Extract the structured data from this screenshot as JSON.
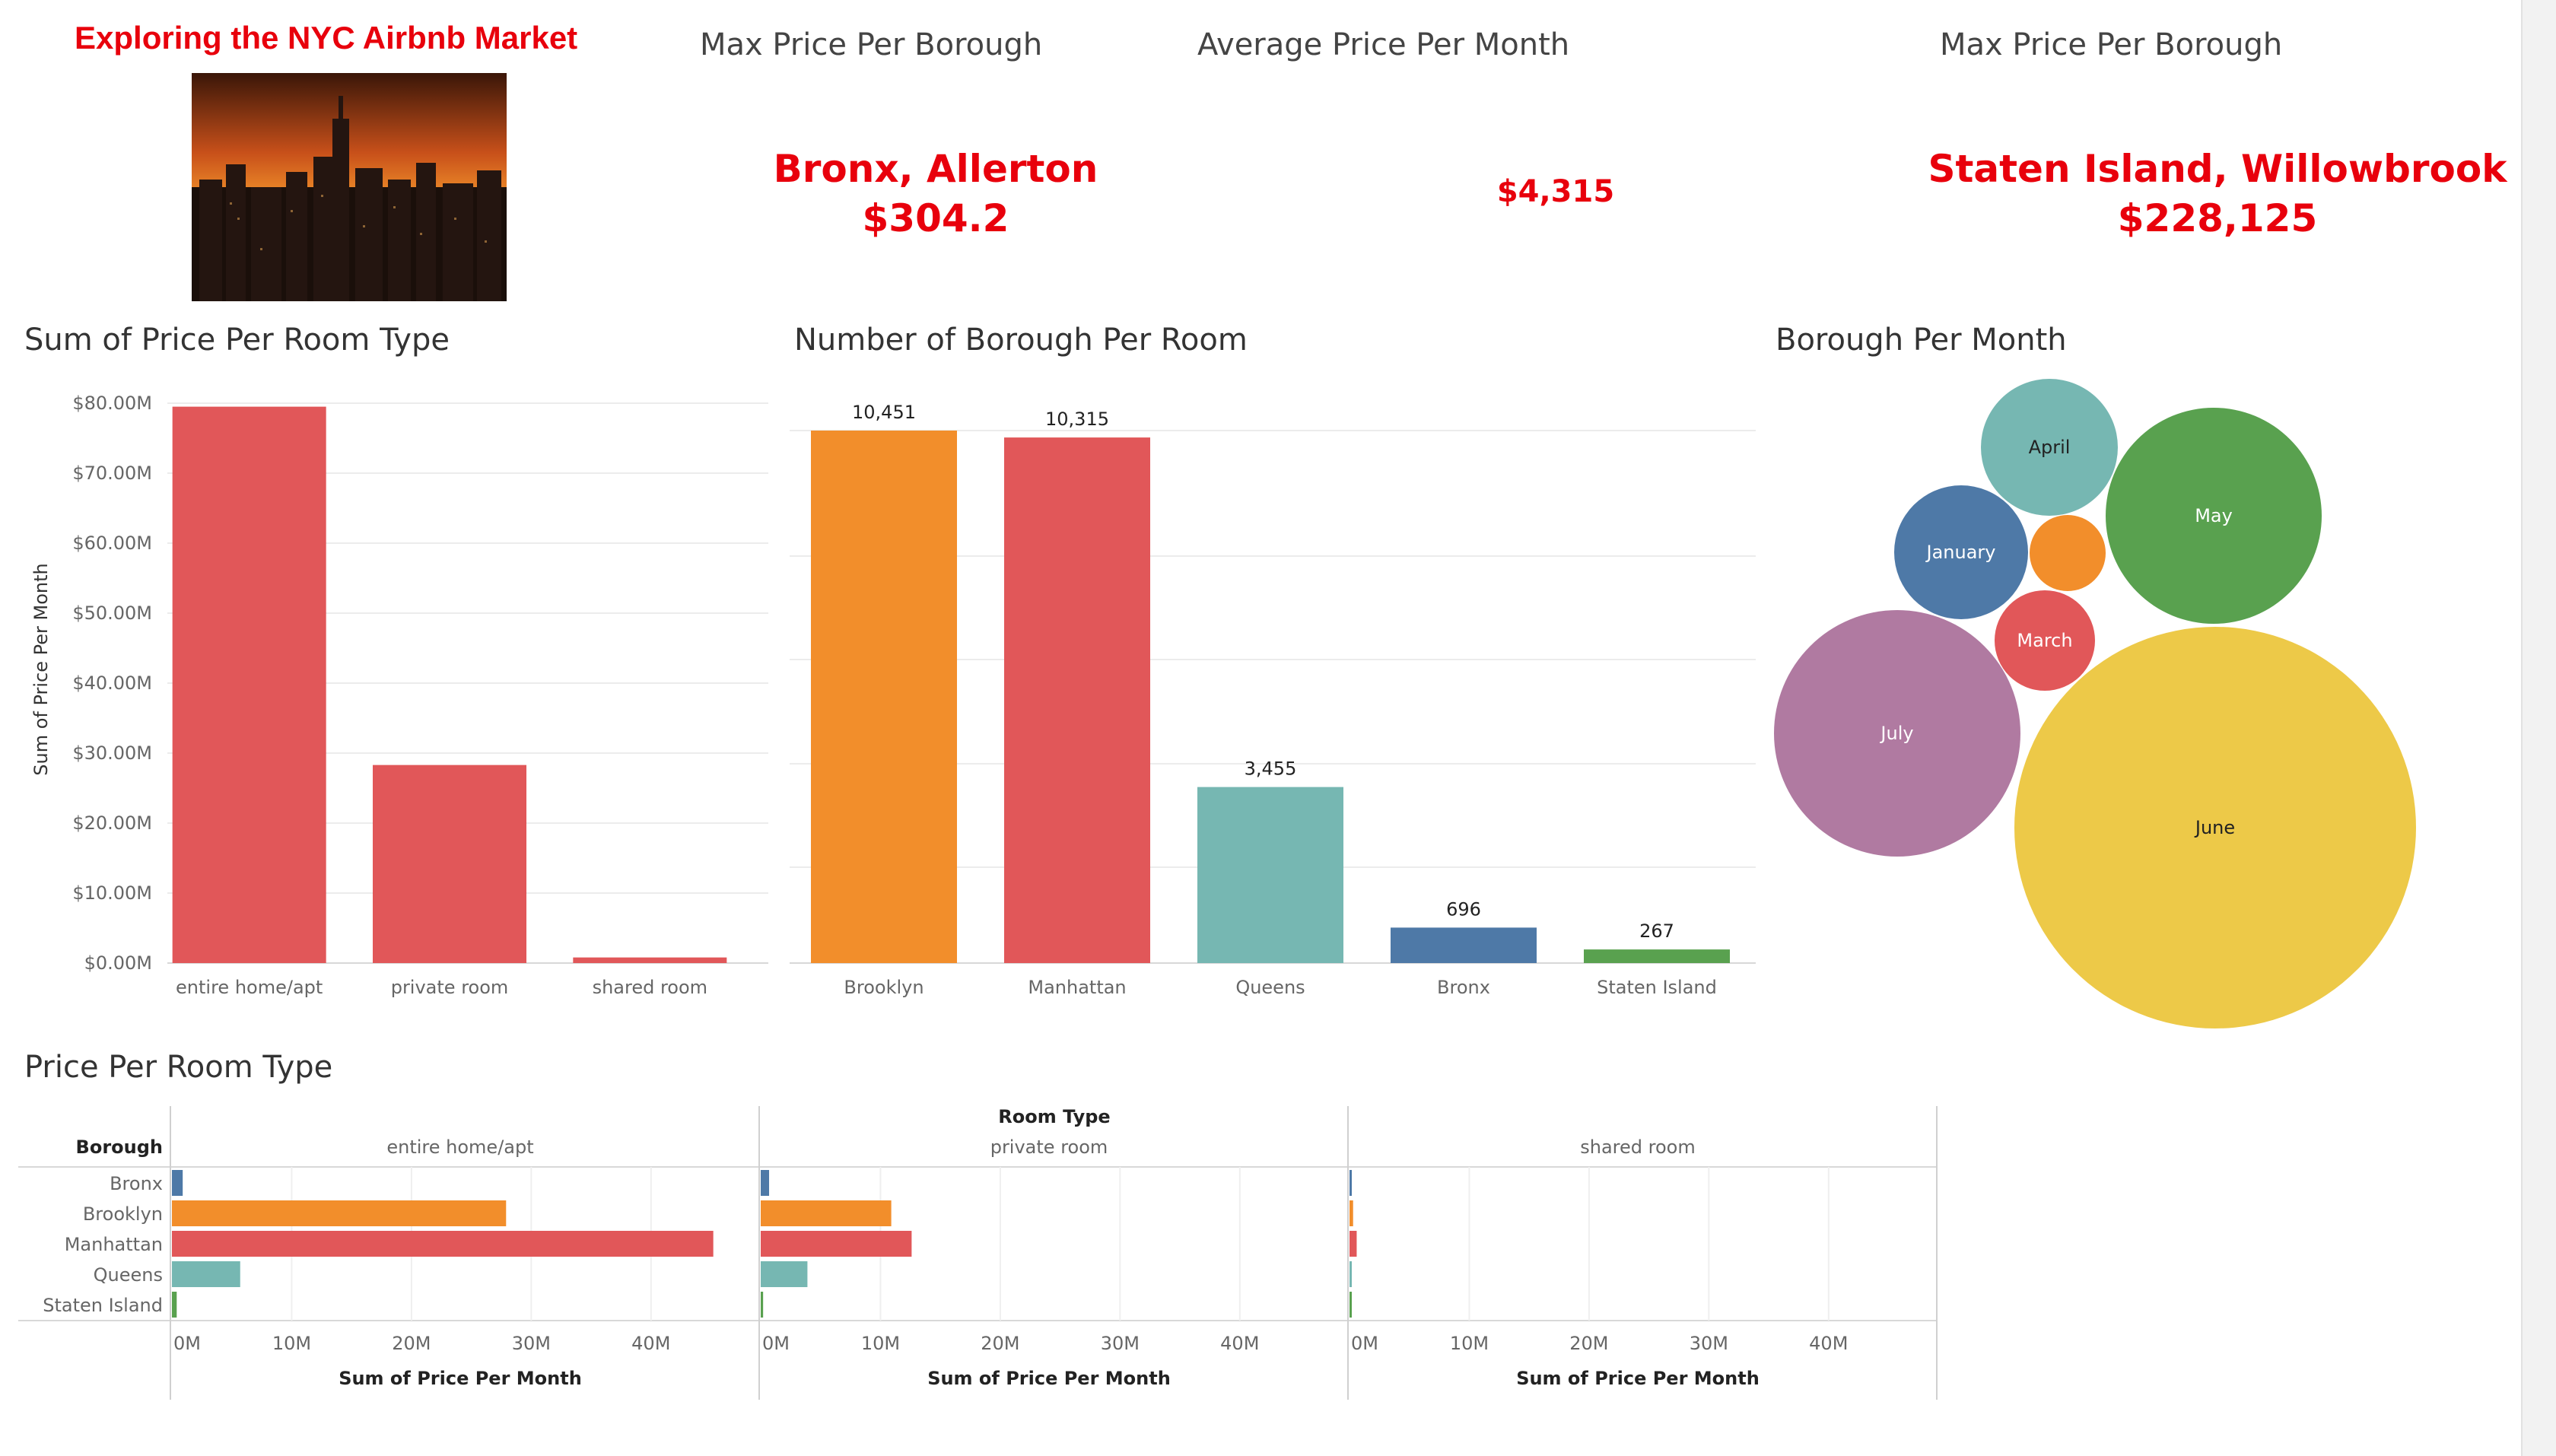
{
  "header": {
    "title": "Exploring the NYC Airbnb Market"
  },
  "kpis": [
    {
      "title": "Max Price Per Borough",
      "line1": "Bronx, Allerton",
      "line2": "$304.2"
    },
    {
      "title": "Average Price Per Month",
      "line1": "$4,315",
      "line2": ""
    },
    {
      "title": "Max Price Per Borough",
      "line1": "Staten Island, Willowbrook",
      "line2": "$228,125"
    }
  ],
  "sections": {
    "room_type_sum": "Sum of Price Per Room Type",
    "borough_count": "Number of Borough Per Room",
    "borough_month": "Borough Per Month",
    "price_room_type": "Price Per Room Type"
  },
  "colors": {
    "red": "#e15759",
    "orange": "#f28e2b",
    "teal": "#76b7b2",
    "blue": "#4e79a7",
    "green": "#59a14f",
    "yellow": "#edc948",
    "purple": "#b07aa1",
    "kpi_red": "#e8000c"
  },
  "chart_data": [
    {
      "type": "bar",
      "title": "Sum of Price Per Room Type",
      "ylabel": "Sum of Price Per Month",
      "categories": [
        "entire home/apt",
        "private room",
        "shared room"
      ],
      "values": [
        79.5,
        28.3,
        0.8
      ],
      "ylim": [
        0,
        80
      ],
      "yticks": [
        "$0.00M",
        "$10.00M",
        "$20.00M",
        "$30.00M",
        "$40.00M",
        "$50.00M",
        "$60.00M",
        "$70.00M",
        "$80.00M"
      ],
      "grid": true
    },
    {
      "type": "bar",
      "title": "Number of Borough Per Room",
      "categories": [
        "Brooklyn",
        "Manhattan",
        "Queens",
        "Bronx",
        "Staten Island"
      ],
      "values": [
        10451,
        10315,
        3455,
        696,
        267
      ],
      "value_labels": [
        "10,451",
        "10,315",
        "3,455",
        "696",
        "267"
      ],
      "colors": [
        "#f28e2b",
        "#e15759",
        "#76b7b2",
        "#4e79a7",
        "#59a14f"
      ],
      "ylim": [
        0,
        10451
      ],
      "grid": true
    },
    {
      "type": "bubble",
      "title": "Borough Per Month",
      "items": [
        {
          "label": "April",
          "color": "#76b7b2"
        },
        {
          "label": "May",
          "color": "#59a14f"
        },
        {
          "label": "January",
          "color": "#4e79a7"
        },
        {
          "label": "",
          "color": "#f28e2b"
        },
        {
          "label": "March",
          "color": "#e15759"
        },
        {
          "label": "July",
          "color": "#b07aa1"
        },
        {
          "label": "June",
          "color": "#edc948"
        }
      ]
    },
    {
      "type": "bar",
      "orientation": "horizontal",
      "title": "Price Per Room Type",
      "column_header": "Room Type",
      "row_header": "Borough",
      "xlabel": "Sum of Price Per Month",
      "xticks": [
        "0M",
        "10M",
        "20M",
        "30M",
        "40M"
      ],
      "xlim": [
        0,
        47
      ],
      "rows": [
        "Bronx",
        "Brooklyn",
        "Manhattan",
        "Queens",
        "Staten Island"
      ],
      "row_colors": [
        "#4e79a7",
        "#f28e2b",
        "#e15759",
        "#76b7b2",
        "#59a14f"
      ],
      "panels": [
        {
          "name": "entire home/apt",
          "values": [
            0.9,
            27.9,
            45.2,
            5.7,
            0.4
          ]
        },
        {
          "name": "private room",
          "values": [
            0.7,
            10.9,
            12.6,
            3.9,
            0.2
          ]
        },
        {
          "name": "shared room",
          "values": [
            0.05,
            0.3,
            0.6,
            0.1,
            0.02
          ]
        }
      ]
    }
  ]
}
